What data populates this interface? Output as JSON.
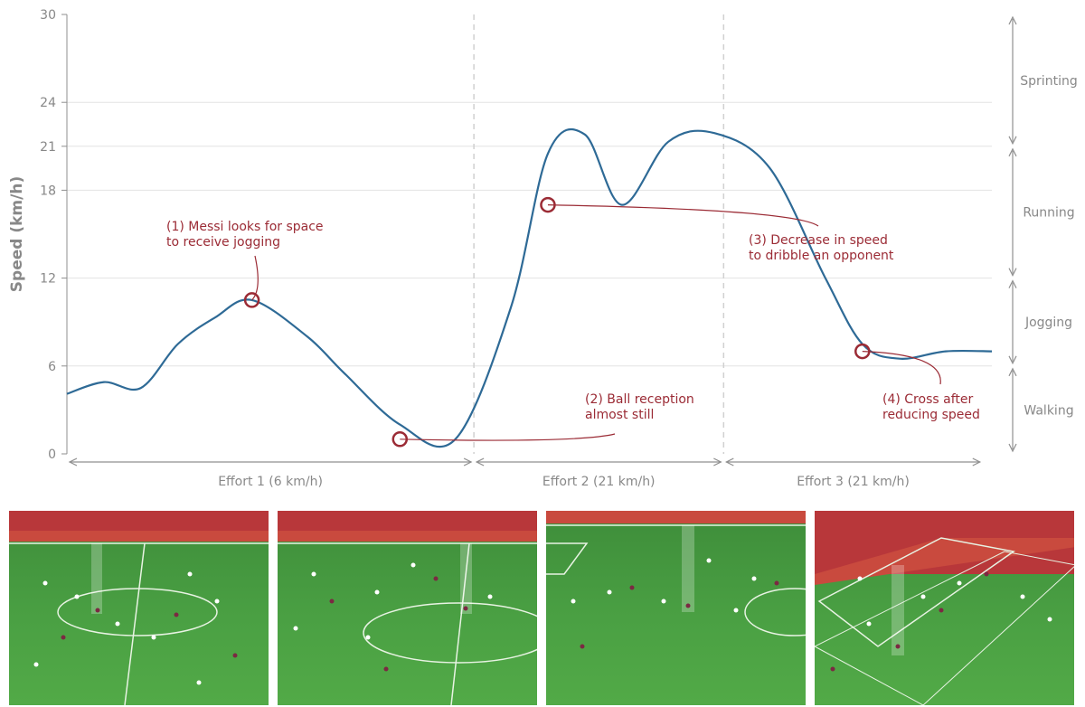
{
  "chart_data": {
    "type": "line",
    "ylabel": "Speed (km/h)",
    "xlabel": "",
    "ylim": [
      0,
      30
    ],
    "y_ticks": [
      "0",
      "6",
      "12",
      "18",
      "21",
      "24",
      "30"
    ],
    "grid": "horizontal",
    "series": [
      {
        "x": [
          0,
          0.04,
          0.08,
          0.12,
          0.16,
          0.2,
          0.26,
          0.3,
          0.36,
          0.42,
          0.48,
          0.52,
          0.56,
          0.6,
          0.65,
          0.7,
          0.76,
          0.82,
          0.86,
          0.9,
          0.95,
          1.0
        ],
        "y": [
          4.1,
          4.9,
          4.5,
          7.5,
          9.3,
          10.5,
          8.0,
          5.5,
          2.0,
          1.0,
          10.0,
          20.5,
          21.8,
          17.0,
          21.3,
          21.9,
          19.5,
          12.0,
          7.5,
          6.5,
          7.0,
          7.0
        ]
      }
    ],
    "plot_x_to_percent_note": "",
    "annotations": [
      {
        "lines": [
          "(1) Messi looks for space",
          "to receive jogging"
        ],
        "x": 0.2,
        "y": 10.5
      },
      {
        "lines": [
          "(2) Ball reception",
          "almost still"
        ],
        "x": 0.36,
        "y": 1.0
      },
      {
        "lines": [
          "(3) Decrease in speed",
          "to dribble an opponent"
        ],
        "x": 0.52,
        "y": 17.0
      },
      {
        "lines": [
          "(4) Cross after",
          "reducing speed"
        ],
        "x": 0.86,
        "y": 7.0
      }
    ],
    "speed_zones": [
      {
        "label": "Sprinting",
        "from": 21,
        "to": 30
      },
      {
        "label": "Running",
        "from": 12,
        "to": 21
      },
      {
        "label": "Jogging",
        "from": 6,
        "to": 12
      },
      {
        "label": "Walking",
        "from": 0,
        "to": 6
      }
    ],
    "efforts": [
      {
        "label": "Effort 1 (6 km/h)"
      },
      {
        "label": "Effort 2 (21 km/h)"
      },
      {
        "label": "Effort 3 (21 km/h)"
      }
    ]
  },
  "colors": {
    "line": "#2e6a96",
    "annotation": "#9b2b35",
    "grid": "#e3e3e3",
    "axis": "#8f8f8f",
    "pitch": "#4aa043",
    "stand": "#c23a3a"
  },
  "photos": [
    {
      "name": "frame-effort-1"
    },
    {
      "name": "frame-effort-2"
    },
    {
      "name": "frame-effort-3a"
    },
    {
      "name": "frame-effort-3b"
    }
  ]
}
